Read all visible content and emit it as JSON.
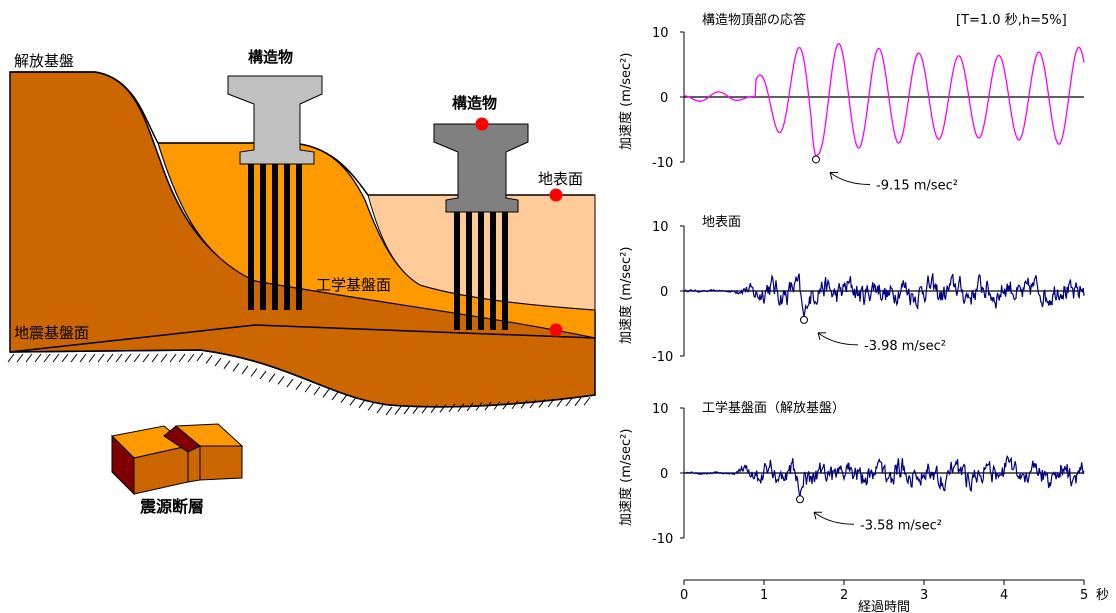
{
  "diagram": {
    "labels": {
      "bedrock_open": "解放基盤",
      "structure_left": "構造物",
      "structure_right": "構造物",
      "ground_surface": "地表面",
      "engineering_base": "工学基盤面",
      "seismic_base": "地震基盤面",
      "fault": "震源断層"
    },
    "colors": {
      "seismic_layer": "#cc6600",
      "engineering_layer": "#ff9900",
      "surface_layer": "#ffcc99",
      "structure_light": "#c0c0c0",
      "structure_dark": "#808080",
      "pile": "#000000",
      "marker": "#ff0000",
      "fault_dark": "#800000"
    }
  },
  "chart_data": [
    {
      "type": "line",
      "title": "構造物頂部の応答",
      "annotation_corner": "[T=1.0 秒,h=5%]",
      "ylabel": "加速度 (m/sec²)",
      "ylim": [
        -10,
        10
      ],
      "yticks": [
        "10",
        "0",
        "-10"
      ],
      "peak": {
        "x": 1.65,
        "y": -9.15,
        "label": "-9.15 m/sec²"
      },
      "color": "#ff00ff"
    },
    {
      "type": "line",
      "title": "地表面",
      "ylabel": "加速度 (m/sec²)",
      "ylim": [
        -10,
        10
      ],
      "yticks": [
        "10",
        "0",
        "-10"
      ],
      "peak": {
        "x": 1.5,
        "y": -3.98,
        "label": "-3.98 m/sec²"
      },
      "color": "#000080"
    },
    {
      "type": "line",
      "title": "工学基盤面（解放基盤）",
      "ylabel": "加速度 (m/sec²)",
      "ylim": [
        -10,
        10
      ],
      "yticks": [
        "10",
        "0",
        "-10"
      ],
      "peak": {
        "x": 1.45,
        "y": -3.58,
        "label": "-3.58 m/sec²"
      },
      "color": "#000080"
    }
  ],
  "x_axis": {
    "label": "経過時間",
    "unit": "秒",
    "xlim": [
      0,
      5
    ],
    "ticks": [
      "0",
      "1",
      "2",
      "3",
      "4",
      "5"
    ]
  }
}
